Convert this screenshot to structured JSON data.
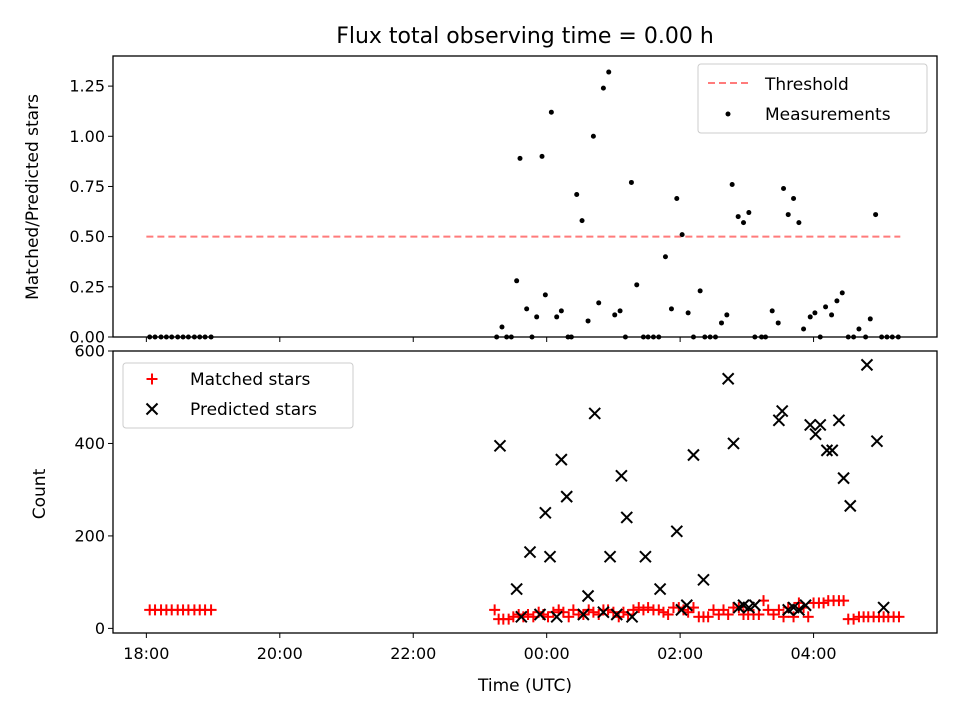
{
  "chart_data": [
    {
      "type": "scatter",
      "title": "Flux total observing time = 0.00 h",
      "xlabel": "",
      "ylabel": "Matched/Predicted stars",
      "xlim": [
        17.5,
        29.85
      ],
      "ylim": [
        0,
        1.4
      ],
      "yticks": [
        "0.00",
        "0.25",
        "0.50",
        "0.75",
        "1.00",
        "1.25"
      ],
      "legend": {
        "position": "top-right",
        "entries": [
          "Threshold",
          "Measurements"
        ]
      },
      "colors": {
        "threshold": "#ff7b7b",
        "measurements": "#000000"
      },
      "series": [
        {
          "name": "Threshold",
          "style": "dashed-line",
          "x": [
            18.0,
            29.3
          ],
          "y": [
            0.5,
            0.5
          ]
        },
        {
          "name": "Measurements",
          "style": "points",
          "x": [
            18.05,
            18.13,
            18.22,
            18.3,
            18.38,
            18.47,
            18.55,
            18.63,
            18.72,
            18.8,
            18.88,
            18.97,
            23.25,
            23.33,
            23.4,
            23.47,
            23.55,
            23.6,
            23.7,
            23.78,
            23.85,
            23.93,
            23.98,
            24.07,
            24.15,
            24.22,
            24.32,
            24.37,
            24.45,
            24.53,
            24.62,
            24.7,
            24.78,
            24.85,
            24.93,
            25.02,
            25.1,
            25.18,
            25.27,
            25.35,
            25.45,
            25.52,
            25.6,
            25.68,
            25.78,
            25.87,
            25.95,
            26.03,
            26.12,
            26.2,
            26.3,
            26.37,
            26.45,
            26.53,
            26.62,
            26.7,
            26.78,
            26.87,
            26.95,
            27.03,
            27.12,
            27.22,
            27.28,
            27.38,
            27.47,
            27.55,
            27.62,
            27.7,
            27.78,
            27.85,
            27.95,
            28.02,
            28.1,
            28.18,
            28.27,
            28.35,
            28.43,
            28.52,
            28.6,
            28.68,
            28.78,
            28.85,
            28.93,
            29.02,
            29.1,
            29.18,
            29.27
          ],
          "y": [
            0,
            0,
            0,
            0,
            0,
            0,
            0,
            0,
            0,
            0,
            0,
            0,
            0,
            0.05,
            0,
            0,
            0.28,
            0.89,
            0.14,
            0,
            0.1,
            0.9,
            0.21,
            1.12,
            0.1,
            0.13,
            0,
            0,
            0.71,
            0.58,
            0.08,
            1.0,
            0.17,
            1.24,
            1.32,
            0.11,
            0.13,
            0,
            0.77,
            0.26,
            0,
            0,
            0,
            0,
            0.4,
            0.14,
            0.69,
            0.51,
            0.12,
            0,
            0.23,
            0,
            0,
            0,
            0.07,
            0.11,
            0.76,
            0.6,
            0.57,
            0.62,
            0,
            0,
            0,
            0.13,
            0.07,
            0.74,
            0.61,
            0.69,
            0.57,
            0.04,
            0.1,
            0.12,
            0,
            0.15,
            0.11,
            0.18,
            0.22,
            0,
            0,
            0.04,
            0,
            0.09,
            0.61,
            0,
            0,
            0,
            0
          ]
        }
      ]
    },
    {
      "type": "scatter",
      "title": "",
      "xlabel": "Time (UTC)",
      "ylabel": "Count",
      "xlim": [
        17.5,
        29.85
      ],
      "ylim": [
        -10,
        600
      ],
      "xticks": [
        18,
        20,
        22,
        24,
        26,
        28
      ],
      "xtick_labels": [
        "18:00",
        "20:00",
        "22:00",
        "00:00",
        "02:00",
        "04:00"
      ],
      "yticks": [
        "0",
        "200",
        "400",
        "600"
      ],
      "legend": {
        "position": "top-left",
        "entries": [
          "Matched stars",
          "Predicted stars"
        ]
      },
      "colors": {
        "matched": "#ff0000",
        "predicted": "#000000"
      },
      "series": [
        {
          "name": "Matched stars",
          "marker": "+",
          "x": [
            18.05,
            18.13,
            18.22,
            18.3,
            18.38,
            18.47,
            18.55,
            18.63,
            18.72,
            18.8,
            18.88,
            18.97,
            23.22,
            23.28,
            23.35,
            23.43,
            23.5,
            23.58,
            23.65,
            23.72,
            23.8,
            23.88,
            23.95,
            24.02,
            24.1,
            24.18,
            24.25,
            24.33,
            24.4,
            24.48,
            24.55,
            24.63,
            24.7,
            24.78,
            24.85,
            24.92,
            25.0,
            25.08,
            25.15,
            25.22,
            25.3,
            25.38,
            25.45,
            25.52,
            25.6,
            25.68,
            25.75,
            25.82,
            25.9,
            25.98,
            26.05,
            26.12,
            26.2,
            26.28,
            26.35,
            26.42,
            26.5,
            26.58,
            26.65,
            26.72,
            26.8,
            26.88,
            26.95,
            27.02,
            27.1,
            27.18,
            27.25,
            27.32,
            27.4,
            27.48,
            27.55,
            27.62,
            27.7,
            27.78,
            27.85,
            27.92,
            28.0,
            28.08,
            28.15,
            28.22,
            28.3,
            28.38,
            28.45,
            28.52,
            28.6,
            28.68,
            28.75,
            28.82,
            28.9,
            28.98,
            29.05,
            29.12,
            29.2,
            29.28
          ],
          "y": [
            40,
            40,
            40,
            40,
            40,
            40,
            40,
            40,
            40,
            40,
            40,
            40,
            40,
            20,
            20,
            20,
            25,
            30,
            25,
            30,
            25,
            35,
            30,
            25,
            35,
            40,
            35,
            25,
            40,
            30,
            30,
            40,
            35,
            30,
            40,
            40,
            35,
            25,
            35,
            30,
            40,
            45,
            40,
            45,
            40,
            40,
            35,
            30,
            45,
            45,
            40,
            35,
            45,
            25,
            25,
            25,
            40,
            30,
            40,
            30,
            45,
            45,
            30,
            30,
            30,
            30,
            60,
            40,
            30,
            40,
            25,
            45,
            25,
            55,
            45,
            25,
            55,
            55,
            55,
            60,
            60,
            60,
            60,
            20,
            20,
            25,
            25,
            25,
            25,
            25,
            25,
            25,
            25,
            25
          ]
        },
        {
          "name": "Predicted stars",
          "marker": "x",
          "x": [
            23.3,
            23.55,
            23.62,
            23.75,
            23.9,
            23.98,
            24.05,
            24.15,
            24.22,
            24.3,
            24.55,
            24.62,
            24.72,
            24.85,
            24.95,
            25.05,
            25.12,
            25.2,
            25.28,
            25.48,
            25.7,
            25.95,
            26.02,
            26.1,
            26.2,
            26.35,
            26.72,
            26.8,
            26.88,
            26.95,
            27.03,
            27.12,
            27.48,
            27.53,
            27.62,
            27.7,
            27.78,
            27.88,
            27.95,
            28.03,
            28.1,
            28.2,
            28.28,
            28.38,
            28.45,
            28.55,
            28.8,
            28.95,
            29.05
          ],
          "y": [
            395,
            85,
            25,
            165,
            30,
            250,
            155,
            25,
            365,
            285,
            30,
            70,
            465,
            35,
            155,
            30,
            330,
            240,
            25,
            155,
            85,
            210,
            40,
            50,
            375,
            105,
            540,
            400,
            45,
            50,
            45,
            50,
            450,
            470,
            40,
            45,
            40,
            50,
            440,
            420,
            440,
            385,
            385,
            450,
            325,
            265,
            570,
            405,
            45
          ]
        }
      ]
    }
  ]
}
